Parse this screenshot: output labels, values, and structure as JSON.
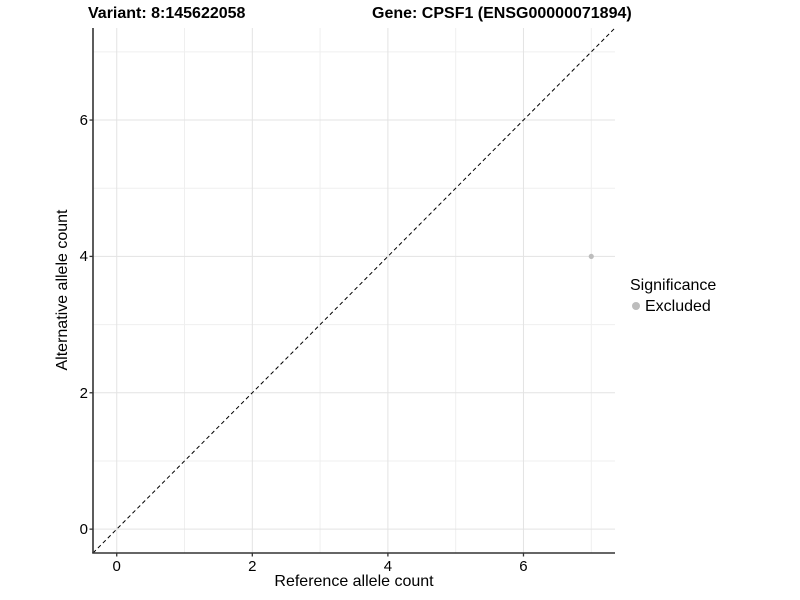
{
  "chart_data": {
    "type": "scatter",
    "title_left": "Variant: 8:145622058",
    "title_right": "Gene: CPSF1 (ENSG00000071894)",
    "xlabel": "Reference allele count",
    "ylabel": "Alternative allele count",
    "xlim": [
      -0.35,
      7.35
    ],
    "ylim": [
      -0.35,
      7.35
    ],
    "x_ticks": [
      0,
      2,
      4,
      6
    ],
    "y_ticks": [
      0,
      2,
      4,
      6
    ],
    "grid_minor": [
      1,
      3,
      5,
      7
    ],
    "grid": true,
    "points": [
      {
        "x": 7,
        "y": 4,
        "series": "Excluded"
      }
    ],
    "identity_line": {
      "style": "dashed",
      "from": [
        -0.35,
        -0.35
      ],
      "to": [
        7.35,
        7.35
      ]
    },
    "legend": {
      "title": "Significance",
      "position": "right",
      "entries": [
        {
          "label": "Excluded",
          "color": "#bdbdbd"
        }
      ]
    },
    "colors": {
      "point": "#bdbdbd",
      "grid_major": "#e3e3e3",
      "grid_minor": "#efefef",
      "axis_line": "#333333",
      "identity_line": "#000000",
      "text": "#000000"
    }
  }
}
